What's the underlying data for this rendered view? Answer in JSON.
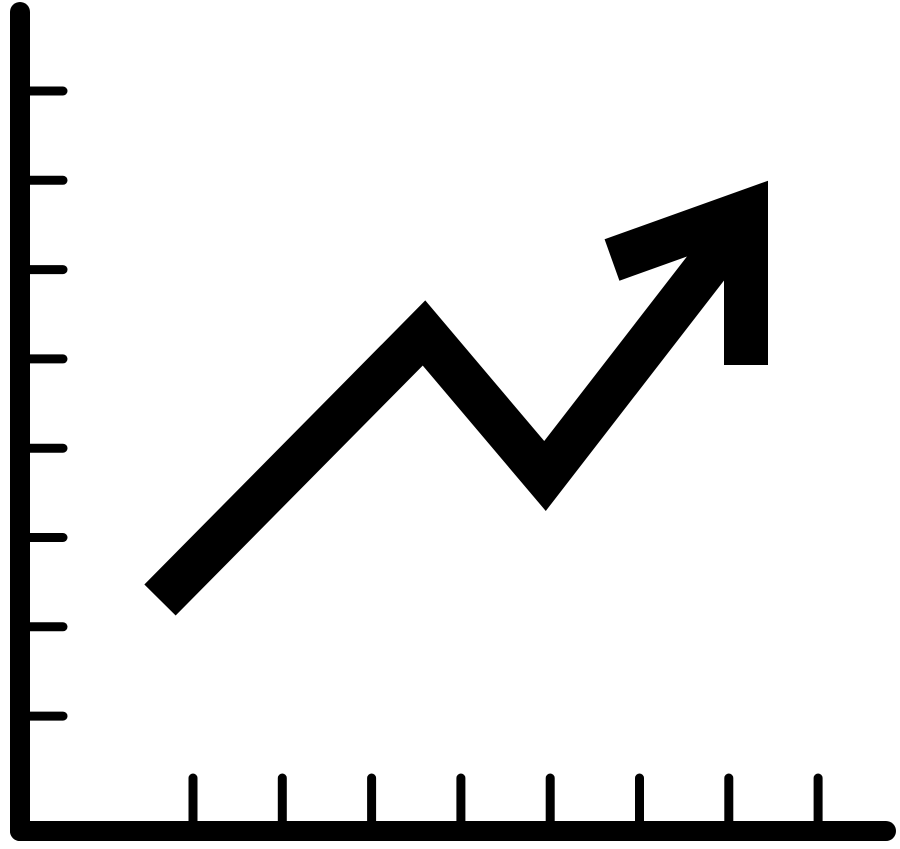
{
  "icon": {
    "semantic_name": "growth-chart-icon",
    "description_name": "line-chart-arrow-up-icon",
    "foreground": "#000000",
    "background": "#ffffff"
  },
  "axes": {
    "y_tick_count": 8,
    "x_tick_count": 8
  },
  "trend": {
    "direction": "up"
  }
}
